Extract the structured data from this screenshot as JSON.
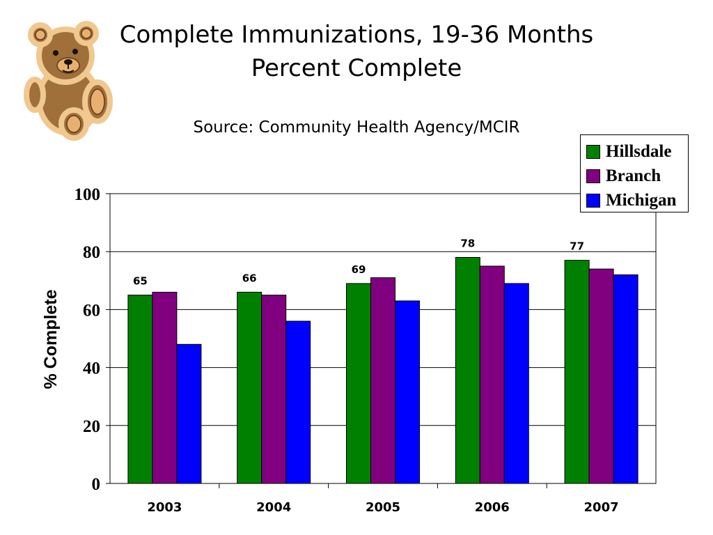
{
  "header": {
    "title_line1": "Complete Immunizations, 19-36 Months",
    "title_line2": "Percent Complete",
    "source": "Source: Community Health Agency/MCIR"
  },
  "colors": {
    "Hillsdale": "#008000",
    "Branch": "#800080",
    "Michigan": "#0000ff"
  },
  "chart_data": {
    "type": "bar",
    "categories": [
      "2003",
      "2004",
      "2005",
      "2006",
      "2007"
    ],
    "series": [
      {
        "name": "Hillsdale",
        "values": [
          65,
          66,
          69,
          78,
          77
        ]
      },
      {
        "name": "Branch",
        "values": [
          66,
          65,
          71,
          75,
          74
        ]
      },
      {
        "name": "Michigan",
        "values": [
          48,
          56,
          63,
          69,
          72
        ]
      }
    ],
    "data_labels": [
      "65",
      "66",
      "69",
      "78",
      "77"
    ],
    "ylabel": "% Complete",
    "ylim": [
      0,
      100
    ],
    "yticks": [
      "0",
      "20",
      "40",
      "60",
      "80",
      "100"
    ],
    "grid": true,
    "legend_position": "top-right"
  }
}
